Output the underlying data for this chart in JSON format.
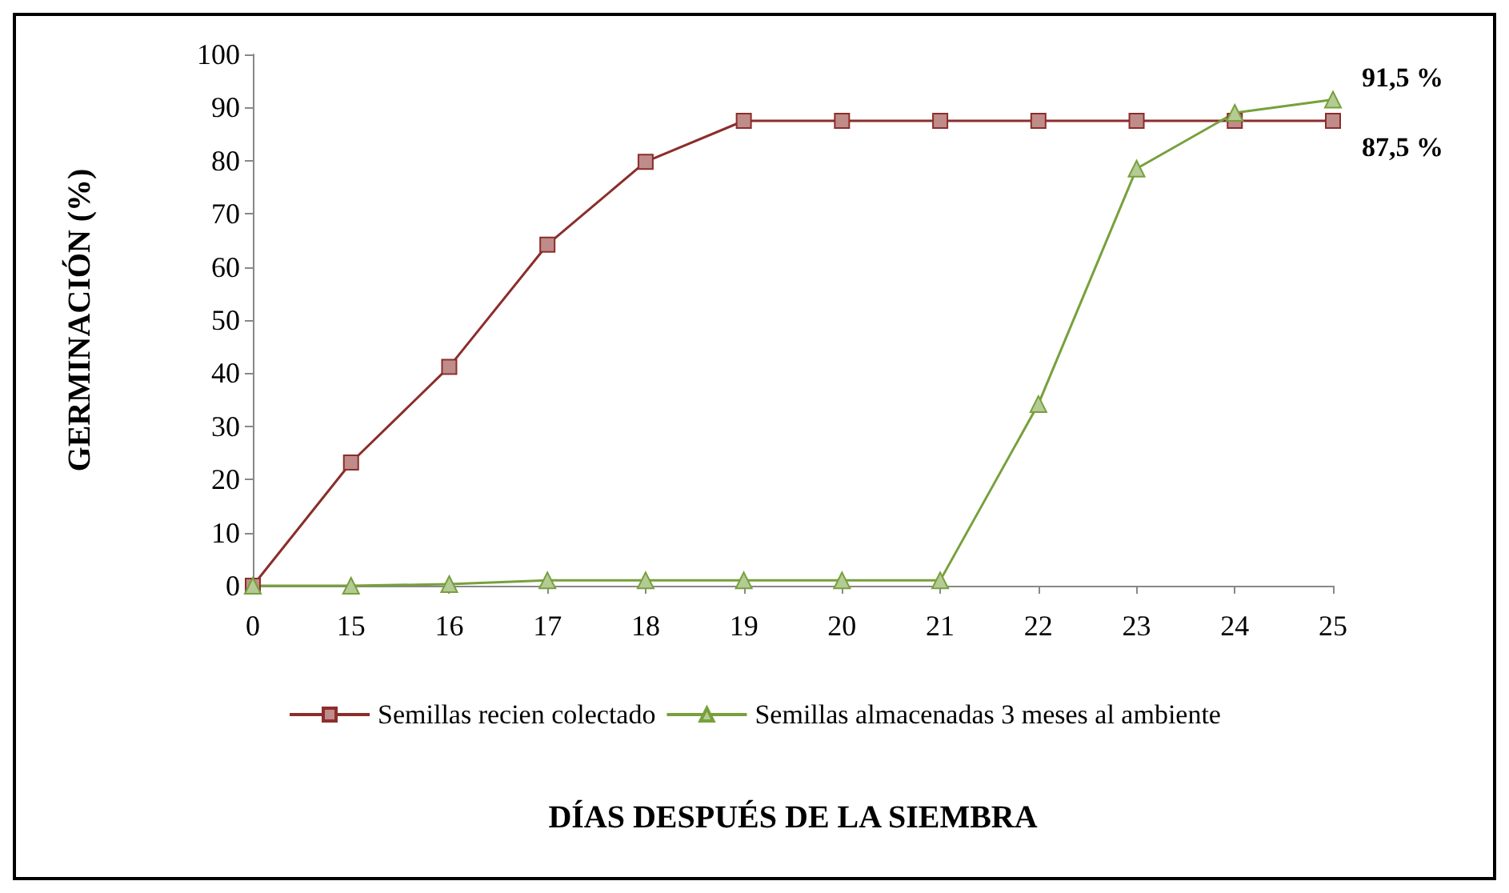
{
  "chart_data": {
    "type": "line",
    "xlabel": "DÍAS DESPUÉS DE LA SIEMBRA",
    "ylabel": "GERMINACIÓN (%)",
    "categories": [
      "0",
      "15",
      "16",
      "17",
      "18",
      "19",
      "20",
      "21",
      "22",
      "23",
      "24",
      "25"
    ],
    "series": [
      {
        "name": "Semillas recien colectado",
        "color": "#8b2e2b",
        "marker": "square",
        "values": [
          0,
          23.2,
          41.2,
          64.2,
          79.8,
          87.5,
          87.5,
          87.5,
          87.5,
          87.5,
          87.5,
          87.5
        ]
      },
      {
        "name": "Semillas almacenadas 3 meses al ambiente",
        "color": "#77a03c",
        "marker": "triangle",
        "values": [
          0,
          0,
          0.3,
          1,
          1,
          1,
          1,
          1,
          34.2,
          78.5,
          89,
          91.5
        ]
      }
    ],
    "ylim": [
      0,
      100
    ],
    "yticks": [
      0,
      10,
      20,
      30,
      40,
      50,
      60,
      70,
      80,
      90,
      100
    ],
    "grid": false,
    "legend": "bottom",
    "annotations": [
      {
        "text": "91,5 %",
        "x": "25",
        "y": 91.5
      },
      {
        "text": "87,5 %",
        "x": "25",
        "y": 87.5
      }
    ]
  }
}
